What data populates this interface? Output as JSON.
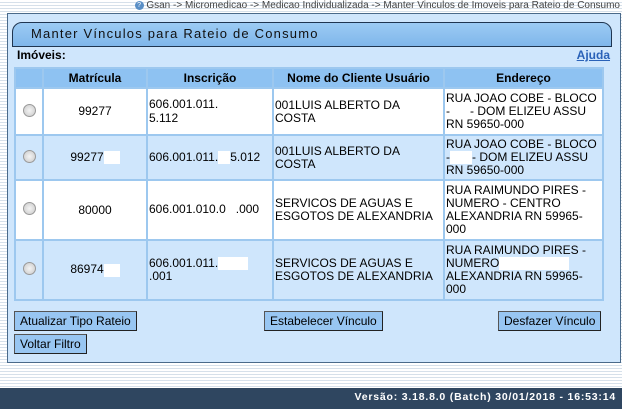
{
  "breadcrumb": "Gsan -> Micromedicao -> Medicao Individualizada -> Manter Vinculos de Imoveis para Rateio de Consumo",
  "title": "Manter Vínculos para Rateio de Consumo",
  "section_label": "Imóveis:",
  "help_link": "Ajuda",
  "table": {
    "headers": [
      "Matrícula",
      "Inscrição",
      "Nome do Cliente Usuário",
      "Endereço"
    ],
    "rows": [
      {
        "matricula": "99277",
        "inscricao_a": "606.001.011.",
        "inscricao_b": "5.112",
        "nome": "001LUIS ALBERTO DA COSTA",
        "end_a": "RUA JOAO COBE - BLOCO -",
        "end_b": "- DOM ELIZEU ASSU RN 59650-000"
      },
      {
        "matricula": "99277",
        "inscricao_a": "606.001.011.",
        "inscricao_b": "5.012",
        "nome": "001LUIS ALBERTO DA COSTA",
        "end_a": "RUA JOAO COBE - BLOCO -",
        "end_b": "- DOM ELIZEU ASSU RN 59650-000"
      },
      {
        "matricula": "80000",
        "inscricao_a": "606.001.010.0",
        "inscricao_b": ".000",
        "nome": "SERVICOS DE AGUAS E ESGOTOS DE ALEXANDRIA",
        "end_a": "RUA RAIMUNDO PIRES - NUMERO -",
        "end_b": "CENTRO ALEXANDRIA RN 59965-000"
      },
      {
        "matricula": "86974",
        "inscricao_a": "606.001.011.",
        "inscricao_b": ".001",
        "nome": "SERVICOS DE AGUAS E ESGOTOS DE ALEXANDRIA",
        "end_a": "RUA RAIMUNDO PIRES - NUMERO",
        "end_b": "ALEXANDRIA RN 59965-000"
      }
    ]
  },
  "buttons": {
    "atualizar": "Atualizar Tipo Rateio",
    "estabelecer": "Estabelecer Vínculo",
    "desfazer": "Desfazer Vínculo",
    "voltar": "Voltar Filtro"
  },
  "footer": "Versão: 3.18.8.0 (Batch) 30/01/2018 - 16:53:14"
}
